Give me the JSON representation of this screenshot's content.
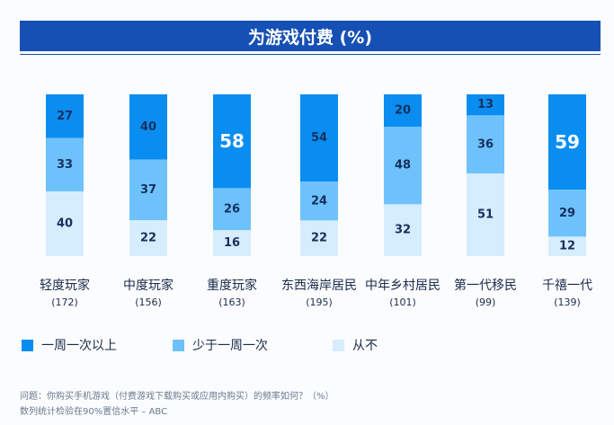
{
  "title": "为游戏付费 (%)",
  "colors": {
    "weekly_plus": "#0a8df0",
    "less_than_weekly": "#6ec2fb",
    "never": "#d6edfd",
    "title_bg": "#1650b4",
    "label_dark": "#17305e"
  },
  "chart_data": {
    "type": "bar",
    "stacked": true,
    "percent_stacked": true,
    "title": "为游戏付费 (%)",
    "categories": [
      "轻度玩家",
      "中度玩家",
      "重度玩家",
      "东西海岸居民",
      "中年乡村居民",
      "第一代移民",
      "千禧一代"
    ],
    "sample_sizes": [
      "(172)",
      "(156)",
      "(163)",
      "(195)",
      "(101)",
      "(99)",
      "(139)"
    ],
    "series": [
      {
        "name": "一周一次以上",
        "values": [
          27,
          40,
          58,
          54,
          20,
          13,
          59
        ]
      },
      {
        "name": "少于一周一次",
        "values": [
          33,
          37,
          26,
          24,
          48,
          36,
          29
        ]
      },
      {
        "name": "从不",
        "values": [
          40,
          22,
          16,
          22,
          32,
          51,
          12
        ]
      }
    ],
    "highlighted_values": [
      58,
      59
    ],
    "ylim": [
      0,
      100
    ],
    "legend_position": "bottom-left"
  },
  "legend": [
    {
      "label": "一周一次以上"
    },
    {
      "label": "少于一周一次"
    },
    {
      "label": "从不"
    }
  ],
  "footnote": {
    "question": "问题：你购买手机游戏（付费游戏下载购买或应用内购买）的频率如何？（%）",
    "significance": "数列统计检验在90%置信水平 – ABC"
  }
}
